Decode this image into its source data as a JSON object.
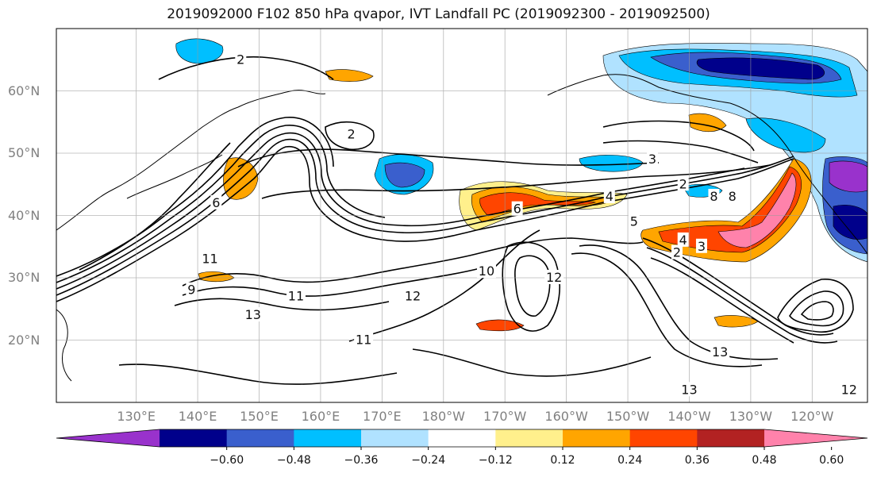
{
  "title": "2019092000 F102 850 hPa qvapor, IVT Landfall PC (2019092300 - 2019092500)",
  "map": {
    "projection": "PlateCarree",
    "lon_range": [
      117,
      249
    ],
    "lat_range": [
      10,
      70
    ],
    "gridlines": true,
    "lat_labels": [
      {
        "lat": 60,
        "text": "60°N"
      },
      {
        "lat": 50,
        "text": "50°N"
      },
      {
        "lat": 40,
        "text": "40°N"
      },
      {
        "lat": 30,
        "text": "30°N"
      },
      {
        "lat": 20,
        "text": "20°N"
      }
    ],
    "lon_labels": [
      {
        "lon": 130,
        "text": "130°E"
      },
      {
        "lon": 140,
        "text": "140°E"
      },
      {
        "lon": 150,
        "text": "150°E"
      },
      {
        "lon": 160,
        "text": "160°E"
      },
      {
        "lon": 170,
        "text": "170°E"
      },
      {
        "lon": 180,
        "text": "180°W"
      },
      {
        "lon": 190,
        "text": "170°W"
      },
      {
        "lon": 200,
        "text": "160°W"
      },
      {
        "lon": 210,
        "text": "150°W"
      },
      {
        "lon": 220,
        "text": "140°W"
      },
      {
        "lon": 230,
        "text": "130°W"
      },
      {
        "lon": 240,
        "text": "120°W"
      }
    ],
    "contour_labels": [
      {
        "text": "2",
        "lon": 147,
        "lat": 65
      },
      {
        "text": "2",
        "lon": 165,
        "lat": 53
      },
      {
        "text": "3",
        "lon": 214,
        "lat": 49
      },
      {
        "text": "2",
        "lon": 219,
        "lat": 45
      },
      {
        "text": "4",
        "lon": 207,
        "lat": 43
      },
      {
        "text": "5",
        "lon": 211,
        "lat": 39
      },
      {
        "text": "8",
        "lon": 227,
        "lat": 43
      },
      {
        "text": "8",
        "lon": 224,
        "lat": 43
      },
      {
        "text": "6",
        "lon": 143,
        "lat": 42
      },
      {
        "text": "6",
        "lon": 192,
        "lat": 41
      },
      {
        "text": "4",
        "lon": 219,
        "lat": 36
      },
      {
        "text": "3",
        "lon": 222,
        "lat": 35
      },
      {
        "text": "2",
        "lon": 218,
        "lat": 34
      },
      {
        "text": "11",
        "lon": 142,
        "lat": 33
      },
      {
        "text": "10",
        "lon": 187,
        "lat": 31
      },
      {
        "text": "12",
        "lon": 198,
        "lat": 30
      },
      {
        "text": "9",
        "lon": 139,
        "lat": 28
      },
      {
        "text": "11",
        "lon": 156,
        "lat": 27
      },
      {
        "text": "12",
        "lon": 175,
        "lat": 27
      },
      {
        "text": "13",
        "lon": 149,
        "lat": 24
      },
      {
        "text": "11",
        "lon": 167,
        "lat": 20
      },
      {
        "text": "13",
        "lon": 225,
        "lat": 18
      },
      {
        "text": "13",
        "lon": 220,
        "lat": 12
      },
      {
        "text": "12",
        "lon": 246,
        "lat": 12
      }
    ]
  },
  "colorbar": {
    "orientation": "horizontal",
    "extend": "both",
    "ticks": [
      "−0.60",
      "−0.48",
      "−0.36",
      "−0.24",
      "−0.12",
      "0.12",
      "0.24",
      "0.36",
      "0.48",
      "0.60"
    ],
    "colors": [
      "#9932cc",
      "#00008b",
      "#3a5fcd",
      "#00bfff",
      "#b0e2ff",
      "#ffffff",
      "#fff08c",
      "#ffa500",
      "#ff4500",
      "#b22222",
      "#ff82ab"
    ]
  }
}
